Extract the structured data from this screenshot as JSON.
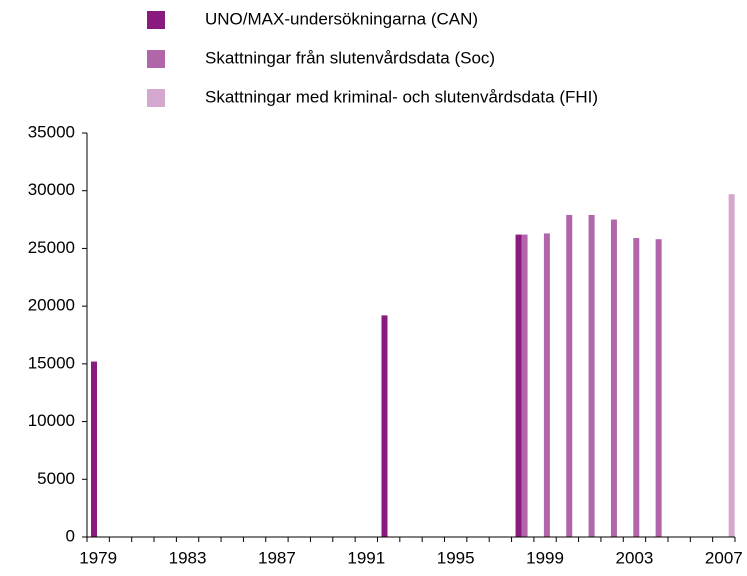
{
  "chart_data": {
    "type": "bar",
    "categories": [
      "1979",
      null,
      null,
      null,
      "1983",
      null,
      null,
      null,
      "1987",
      null,
      null,
      null,
      "1991",
      null,
      null,
      null,
      "1995",
      null,
      null,
      null,
      "1999",
      null,
      null,
      null,
      "2003",
      null,
      null,
      null,
      "2007"
    ],
    "series": [
      {
        "name": "UNO/MAX-undersökningarna (CAN)",
        "color": "#8b1a7e",
        "values": [
          15200,
          null,
          null,
          null,
          null,
          null,
          null,
          null,
          null,
          null,
          null,
          null,
          null,
          19200,
          null,
          null,
          null,
          null,
          null,
          26200,
          null,
          null,
          null,
          null,
          null,
          null,
          null,
          null,
          null
        ]
      },
      {
        "name": "Skattningar från slutenvårdsdata (Soc)",
        "color": "#b066a8",
        "values": [
          null,
          null,
          null,
          null,
          null,
          null,
          null,
          null,
          null,
          null,
          null,
          null,
          null,
          null,
          null,
          null,
          null,
          null,
          null,
          26200,
          26300,
          27900,
          27900,
          27500,
          25900,
          25800,
          null,
          null,
          null
        ]
      },
      {
        "name": "Skattningar med kriminal- och slutenvårdsdata (FHI)",
        "color": "#d4a7cf",
        "values": [
          null,
          null,
          null,
          null,
          null,
          null,
          null,
          null,
          null,
          null,
          null,
          null,
          null,
          null,
          null,
          null,
          null,
          null,
          null,
          null,
          null,
          null,
          null,
          null,
          null,
          null,
          null,
          null,
          29700
        ]
      }
    ],
    "ylim": [
      0,
      35000
    ],
    "yticks": [
      0,
      5000,
      10000,
      15000,
      20000,
      25000,
      30000,
      35000
    ],
    "grid": false
  }
}
